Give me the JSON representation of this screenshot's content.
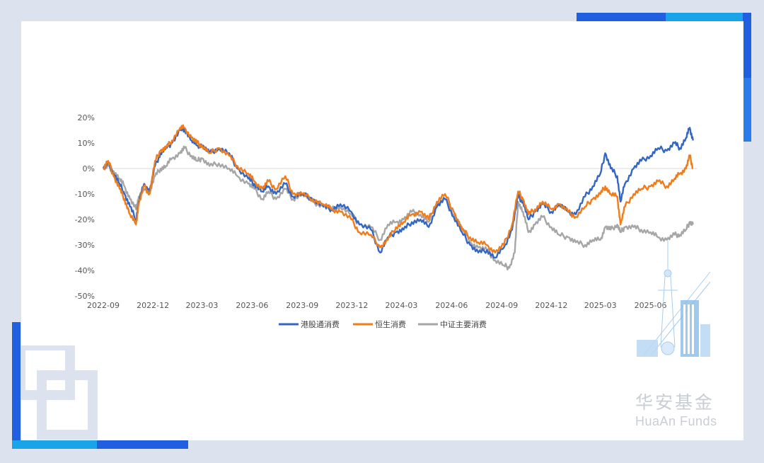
{
  "colors": {
    "background": "#dde3ee",
    "card": "#ffffff",
    "accent_blue": "#1f5fe0",
    "accent_cyan": "#19a3e8",
    "series_hk_connect": "#3467c5",
    "series_hang_seng": "#f07c1a",
    "series_csi": "#a6a6a6",
    "zero_line": "#d9d9d9"
  },
  "brand": {
    "name_cn": "华安基金",
    "name_en": "HuaAn Funds",
    "icon": "shanghai-skyline-icon"
  },
  "chart_data": {
    "type": "line",
    "title": "",
    "xlabel": "",
    "ylabel": "",
    "y_unit": "%",
    "ylim": [
      -50,
      20
    ],
    "y_ticks": [
      20,
      10,
      0,
      -10,
      -20,
      -30,
      -40,
      -50
    ],
    "y_tick_labels": [
      "20%",
      "10%",
      "0%",
      "-10%",
      "-20%",
      "-30%",
      "-40%",
      "-50%"
    ],
    "x_range": [
      "2022-09",
      "2025-08"
    ],
    "x_ticks": [
      "2022-09",
      "2022-12",
      "2023-03",
      "2023-06",
      "2023-09",
      "2023-12",
      "2024-03",
      "2024-06",
      "2024-09",
      "2024-12",
      "2025-03",
      "2025-06"
    ],
    "grid": false,
    "zero_line": true,
    "legend_position": "bottom",
    "series": [
      {
        "name": "港股通消费",
        "color": "#3467c5",
        "points": [
          [
            "2022-09-01",
            0
          ],
          [
            "2022-09-10",
            2
          ],
          [
            "2022-09-20",
            -2
          ],
          [
            "2022-10-01",
            -6
          ],
          [
            "2022-10-10",
            -10
          ],
          [
            "2022-10-20",
            -15
          ],
          [
            "2022-10-31",
            -20
          ],
          [
            "2022-11-05",
            -13
          ],
          [
            "2022-11-15",
            -6
          ],
          [
            "2022-11-25",
            -9
          ],
          [
            "2022-12-05",
            1
          ],
          [
            "2022-12-15",
            6
          ],
          [
            "2022-12-25",
            8
          ],
          [
            "2023-01-05",
            10
          ],
          [
            "2023-01-20",
            15
          ],
          [
            "2023-01-28",
            15.5
          ],
          [
            "2023-02-10",
            11
          ],
          [
            "2023-02-20",
            9
          ],
          [
            "2023-03-01",
            9
          ],
          [
            "2023-03-15",
            6
          ],
          [
            "2023-04-01",
            8
          ],
          [
            "2023-04-20",
            6
          ],
          [
            "2023-05-05",
            0
          ],
          [
            "2023-05-25",
            -4
          ],
          [
            "2023-06-05",
            -6
          ],
          [
            "2023-06-20",
            -9
          ],
          [
            "2023-07-01",
            -7
          ],
          [
            "2023-07-15",
            -10
          ],
          [
            "2023-08-01",
            -6
          ],
          [
            "2023-08-15",
            -11
          ],
          [
            "2023-09-01",
            -10
          ],
          [
            "2023-09-20",
            -12
          ],
          [
            "2023-10-10",
            -15
          ],
          [
            "2023-10-25",
            -16
          ],
          [
            "2023-11-10",
            -14
          ],
          [
            "2023-11-30",
            -17
          ],
          [
            "2023-12-15",
            -22
          ],
          [
            "2024-01-05",
            -24
          ],
          [
            "2024-01-22",
            -33
          ],
          [
            "2024-02-05",
            -27
          ],
          [
            "2024-02-20",
            -25
          ],
          [
            "2024-03-05",
            -24
          ],
          [
            "2024-03-20",
            -21
          ],
          [
            "2024-04-05",
            -20
          ],
          [
            "2024-04-20",
            -23
          ],
          [
            "2024-05-05",
            -15
          ],
          [
            "2024-05-20",
            -12
          ],
          [
            "2024-06-05",
            -19
          ],
          [
            "2024-06-20",
            -25
          ],
          [
            "2024-07-05",
            -30
          ],
          [
            "2024-07-20",
            -33
          ],
          [
            "2024-08-05",
            -32
          ],
          [
            "2024-08-20",
            -35
          ],
          [
            "2024-09-05",
            -31
          ],
          [
            "2024-09-20",
            -24
          ],
          [
            "2024-10-01",
            -11
          ],
          [
            "2024-10-10",
            -13
          ],
          [
            "2024-10-20",
            -20
          ],
          [
            "2024-11-01",
            -17
          ],
          [
            "2024-11-15",
            -14
          ],
          [
            "2024-12-01",
            -17
          ],
          [
            "2024-12-15",
            -14
          ],
          [
            "2025-01-01",
            -17
          ],
          [
            "2025-01-15",
            -18
          ],
          [
            "2025-02-01",
            -11
          ],
          [
            "2025-02-15",
            -7
          ],
          [
            "2025-03-01",
            -2
          ],
          [
            "2025-03-10",
            6
          ],
          [
            "2025-03-20",
            0
          ],
          [
            "2025-04-01",
            -3
          ],
          [
            "2025-04-07",
            -13
          ],
          [
            "2025-04-15",
            -6
          ],
          [
            "2025-05-01",
            0
          ],
          [
            "2025-05-15",
            3
          ],
          [
            "2025-06-01",
            5
          ],
          [
            "2025-06-15",
            8
          ],
          [
            "2025-07-01",
            7
          ],
          [
            "2025-07-15",
            10
          ],
          [
            "2025-07-25",
            8
          ],
          [
            "2025-08-05",
            12
          ],
          [
            "2025-08-12",
            16
          ],
          [
            "2025-08-18",
            11
          ]
        ]
      },
      {
        "name": "恒生消费",
        "color": "#f07c1a",
        "points": [
          [
            "2022-09-01",
            0
          ],
          [
            "2022-09-10",
            3
          ],
          [
            "2022-09-20",
            -3
          ],
          [
            "2022-10-01",
            -8
          ],
          [
            "2022-10-10",
            -12
          ],
          [
            "2022-10-20",
            -18
          ],
          [
            "2022-10-31",
            -22
          ],
          [
            "2022-11-05",
            -14
          ],
          [
            "2022-11-15",
            -7
          ],
          [
            "2022-11-25",
            -10
          ],
          [
            "2022-12-05",
            3
          ],
          [
            "2022-12-15",
            7
          ],
          [
            "2022-12-25",
            8
          ],
          [
            "2023-01-05",
            11
          ],
          [
            "2023-01-20",
            16
          ],
          [
            "2023-01-28",
            16
          ],
          [
            "2023-02-10",
            12
          ],
          [
            "2023-02-20",
            10
          ],
          [
            "2023-03-01",
            9
          ],
          [
            "2023-03-15",
            6
          ],
          [
            "2023-04-01",
            8
          ],
          [
            "2023-04-20",
            5
          ],
          [
            "2023-05-05",
            1
          ],
          [
            "2023-05-25",
            -2
          ],
          [
            "2023-06-05",
            -5
          ],
          [
            "2023-06-20",
            -8
          ],
          [
            "2023-07-01",
            -5
          ],
          [
            "2023-07-15",
            -8
          ],
          [
            "2023-08-01",
            -3
          ],
          [
            "2023-08-15",
            -10
          ],
          [
            "2023-09-01",
            -10
          ],
          [
            "2023-09-20",
            -12
          ],
          [
            "2023-10-10",
            -14
          ],
          [
            "2023-10-25",
            -16
          ],
          [
            "2023-11-10",
            -17
          ],
          [
            "2023-11-30",
            -20
          ],
          [
            "2023-12-15",
            -25
          ],
          [
            "2024-01-05",
            -26
          ],
          [
            "2024-01-22",
            -31
          ],
          [
            "2024-02-05",
            -28
          ],
          [
            "2024-02-20",
            -23
          ],
          [
            "2024-03-05",
            -21
          ],
          [
            "2024-03-20",
            -18
          ],
          [
            "2024-04-05",
            -17
          ],
          [
            "2024-04-20",
            -20
          ],
          [
            "2024-05-05",
            -13
          ],
          [
            "2024-05-20",
            -10
          ],
          [
            "2024-06-05",
            -17
          ],
          [
            "2024-06-20",
            -24
          ],
          [
            "2024-07-05",
            -27
          ],
          [
            "2024-07-20",
            -29
          ],
          [
            "2024-08-05",
            -30
          ],
          [
            "2024-08-20",
            -33
          ],
          [
            "2024-09-05",
            -30
          ],
          [
            "2024-09-20",
            -22
          ],
          [
            "2024-10-01",
            -9
          ],
          [
            "2024-10-10",
            -12
          ],
          [
            "2024-10-20",
            -18
          ],
          [
            "2024-11-01",
            -16
          ],
          [
            "2024-11-15",
            -13
          ],
          [
            "2024-12-01",
            -16
          ],
          [
            "2024-12-15",
            -14
          ],
          [
            "2025-01-01",
            -17
          ],
          [
            "2025-01-15",
            -19
          ],
          [
            "2025-02-01",
            -15
          ],
          [
            "2025-02-15",
            -12
          ],
          [
            "2025-03-01",
            -10
          ],
          [
            "2025-03-10",
            -7
          ],
          [
            "2025-03-20",
            -10
          ],
          [
            "2025-04-01",
            -11
          ],
          [
            "2025-04-07",
            -22
          ],
          [
            "2025-04-15",
            -15
          ],
          [
            "2025-05-01",
            -10
          ],
          [
            "2025-05-15",
            -8
          ],
          [
            "2025-06-01",
            -7
          ],
          [
            "2025-06-15",
            -5
          ],
          [
            "2025-07-01",
            -7
          ],
          [
            "2025-07-15",
            -4
          ],
          [
            "2025-07-25",
            -2
          ],
          [
            "2025-08-05",
            0
          ],
          [
            "2025-08-12",
            5
          ],
          [
            "2025-08-18",
            0
          ]
        ]
      },
      {
        "name": "中证主要消费",
        "color": "#a6a6a6",
        "points": [
          [
            "2022-09-01",
            0
          ],
          [
            "2022-09-10",
            1
          ],
          [
            "2022-09-20",
            -1
          ],
          [
            "2022-10-01",
            -4
          ],
          [
            "2022-10-10",
            -7
          ],
          [
            "2022-10-20",
            -12
          ],
          [
            "2022-10-31",
            -16
          ],
          [
            "2022-11-05",
            -11
          ],
          [
            "2022-11-15",
            -8
          ],
          [
            "2022-11-25",
            -9
          ],
          [
            "2022-12-05",
            -3
          ],
          [
            "2022-12-15",
            0
          ],
          [
            "2022-12-25",
            1
          ],
          [
            "2023-01-05",
            4
          ],
          [
            "2023-01-20",
            6
          ],
          [
            "2023-01-28",
            8
          ],
          [
            "2023-02-10",
            5
          ],
          [
            "2023-02-20",
            3
          ],
          [
            "2023-03-01",
            4
          ],
          [
            "2023-03-15",
            1
          ],
          [
            "2023-04-01",
            2
          ],
          [
            "2023-04-20",
            0
          ],
          [
            "2023-05-05",
            -3
          ],
          [
            "2023-05-25",
            -6
          ],
          [
            "2023-06-05",
            -8
          ],
          [
            "2023-06-20",
            -12
          ],
          [
            "2023-07-01",
            -9
          ],
          [
            "2023-07-15",
            -12
          ],
          [
            "2023-08-01",
            -8
          ],
          [
            "2023-08-15",
            -12
          ],
          [
            "2023-09-01",
            -10
          ],
          [
            "2023-09-20",
            -13
          ],
          [
            "2023-10-10",
            -15
          ],
          [
            "2023-10-25",
            -16
          ],
          [
            "2023-11-10",
            -15
          ],
          [
            "2023-11-30",
            -18
          ],
          [
            "2023-12-15",
            -22
          ],
          [
            "2024-01-05",
            -23
          ],
          [
            "2024-01-22",
            -28
          ],
          [
            "2024-02-05",
            -22
          ],
          [
            "2024-02-20",
            -21
          ],
          [
            "2024-03-05",
            -20
          ],
          [
            "2024-03-20",
            -17
          ],
          [
            "2024-04-05",
            -18
          ],
          [
            "2024-04-20",
            -21
          ],
          [
            "2024-05-05",
            -14
          ],
          [
            "2024-05-20",
            -12
          ],
          [
            "2024-06-05",
            -18
          ],
          [
            "2024-06-20",
            -23
          ],
          [
            "2024-07-05",
            -29
          ],
          [
            "2024-07-20",
            -31
          ],
          [
            "2024-08-05",
            -32
          ],
          [
            "2024-08-20",
            -36
          ],
          [
            "2024-09-05",
            -38
          ],
          [
            "2024-09-15",
            -39
          ],
          [
            "2024-09-25",
            -33
          ],
          [
            "2024-10-01",
            -13
          ],
          [
            "2024-10-10",
            -17
          ],
          [
            "2024-10-20",
            -25
          ],
          [
            "2024-11-01",
            -22
          ],
          [
            "2024-11-15",
            -19
          ],
          [
            "2024-12-01",
            -23
          ],
          [
            "2024-12-15",
            -26
          ],
          [
            "2025-01-01",
            -27
          ],
          [
            "2025-01-15",
            -29
          ],
          [
            "2025-02-01",
            -30
          ],
          [
            "2025-02-15",
            -28
          ],
          [
            "2025-03-01",
            -28
          ],
          [
            "2025-03-10",
            -23
          ],
          [
            "2025-03-20",
            -24
          ],
          [
            "2025-04-01",
            -22
          ],
          [
            "2025-04-07",
            -25
          ],
          [
            "2025-04-15",
            -23
          ],
          [
            "2025-05-01",
            -23
          ],
          [
            "2025-05-15",
            -24
          ],
          [
            "2025-06-01",
            -25
          ],
          [
            "2025-06-15",
            -27
          ],
          [
            "2025-07-01",
            -28
          ],
          [
            "2025-07-15",
            -26
          ],
          [
            "2025-07-25",
            -26
          ],
          [
            "2025-08-05",
            -24
          ],
          [
            "2025-08-12",
            -21
          ],
          [
            "2025-08-18",
            -22
          ]
        ]
      }
    ]
  }
}
